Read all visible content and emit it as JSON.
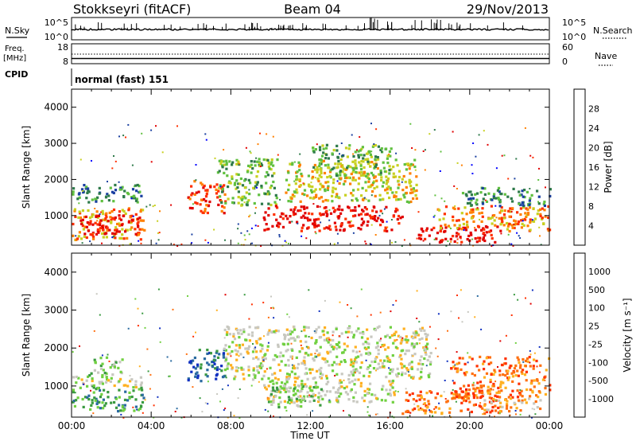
{
  "header": {
    "station": "Stokkseyri (fitACF)",
    "beam": "Beam 04",
    "date": "29/Nov/2013"
  },
  "strip_panels": {
    "nsky": {
      "label": "N.Sky",
      "ticks": [
        "10^5",
        "10^0"
      ],
      "right_ticks": [
        "10^5",
        "10^0"
      ],
      "right_label": "N.Search"
    },
    "freq": {
      "label_line1": "Freq.",
      "label_line2": "[MHz]",
      "ticks": [
        "18",
        "8"
      ],
      "right_ticks": [
        "60",
        "0"
      ],
      "right_label": "Nave"
    },
    "cpid": {
      "label": "CPID",
      "value": "normal (fast) 151"
    }
  },
  "chart_data": [
    {
      "type": "heatmap",
      "name": "power",
      "ylabel": "Slant Range [km]",
      "yticks": [
        "4000",
        "3000",
        "2000",
        "1000"
      ],
      "yticks_values": [
        4000,
        3000,
        2000,
        1000
      ],
      "ylim": [
        180,
        4500
      ],
      "xlim": [
        0,
        24
      ],
      "colorbar": {
        "label": "Power [dB]",
        "ticks": [
          "28",
          "24",
          "20",
          "16",
          "12",
          "8",
          "4"
        ],
        "colors": [
          "#0000ff",
          "#1a3fa0",
          "#2e7a4a",
          "#60c040",
          "#c8d020",
          "#ff8000",
          "#ff3000",
          "#e00000"
        ]
      },
      "regions": [
        {
          "t0": 0.0,
          "t1": 3.7,
          "r0": 350,
          "r1": 1250,
          "level": 5
        },
        {
          "t0": 0.4,
          "t1": 3.4,
          "r0": 500,
          "r1": 1050,
          "level": 7
        },
        {
          "t0": 0.0,
          "t1": 3.5,
          "r0": 1400,
          "r1": 1900,
          "level": 2
        },
        {
          "t0": 5.8,
          "t1": 7.7,
          "r0": 1100,
          "r1": 2000,
          "level": 6
        },
        {
          "t0": 7.3,
          "t1": 10.3,
          "r0": 1300,
          "r1": 2600,
          "level": 3
        },
        {
          "t0": 9.6,
          "t1": 16.6,
          "r0": 600,
          "r1": 1300,
          "level": 7
        },
        {
          "t0": 10.7,
          "t1": 17.3,
          "r0": 1400,
          "r1": 2600,
          "level": 4
        },
        {
          "t0": 12.0,
          "t1": 16.0,
          "r0": 2100,
          "r1": 3000,
          "level": 3
        },
        {
          "t0": 17.3,
          "t1": 21.5,
          "r0": 280,
          "r1": 750,
          "level": 7
        },
        {
          "t0": 18.3,
          "t1": 24.0,
          "r0": 600,
          "r1": 1300,
          "level": 5
        },
        {
          "t0": 19.5,
          "t1": 24.0,
          "r0": 1300,
          "r1": 1800,
          "level": 2
        }
      ]
    },
    {
      "type": "heatmap",
      "name": "velocity",
      "ylabel": "Slant Range [km]",
      "yticks": [
        "4000",
        "3000",
        "2000",
        "1000"
      ],
      "yticks_values": [
        4000,
        3000,
        2000,
        1000
      ],
      "ylim": [
        180,
        4500
      ],
      "xlim": [
        0,
        24
      ],
      "xticks": [
        "00:00",
        "04:00",
        "08:00",
        "12:00",
        "16:00",
        "20:00",
        "00:00"
      ],
      "xticks_values": [
        0,
        4,
        8,
        12,
        16,
        20,
        24
      ],
      "xlabel": "Time UT",
      "colorbar": {
        "label": "Velocity [m s⁻¹]",
        "ticks": [
          "1000",
          "500",
          "100",
          "25",
          "-25",
          "-100",
          "-500",
          "-1000"
        ],
        "colors": [
          "#1030c0",
          "#2a6aa0",
          "#3a9a40",
          "#70d040",
          "#c8c8c0",
          "#ffb020",
          "#ff7010",
          "#ff3000",
          "#e00000"
        ]
      },
      "regions": [
        {
          "t0": 0.0,
          "t1": 3.6,
          "r0": 350,
          "r1": 1000,
          "level": 2
        },
        {
          "t0": 0.0,
          "t1": 3.6,
          "r0": 1000,
          "r1": 1300,
          "level": 4
        },
        {
          "t0": 0.8,
          "t1": 2.5,
          "r0": 1300,
          "r1": 1800,
          "level": 3
        },
        {
          "t0": 5.8,
          "t1": 7.7,
          "r0": 1100,
          "r1": 2000,
          "level": 1
        },
        {
          "t0": 7.6,
          "t1": 18.0,
          "r0": 1200,
          "r1": 2600,
          "level": 4
        },
        {
          "t0": 9.6,
          "t1": 16.3,
          "r0": 600,
          "r1": 1200,
          "level": 4
        },
        {
          "t0": 9.8,
          "t1": 12.5,
          "r0": 450,
          "r1": 1100,
          "level": 3
        },
        {
          "t0": 16.5,
          "t1": 21.5,
          "r0": 300,
          "r1": 900,
          "level": 6
        },
        {
          "t0": 19.0,
          "t1": 24.0,
          "r0": 700,
          "r1": 1800,
          "level": 6
        },
        {
          "t0": 20.6,
          "t1": 23.5,
          "r0": 350,
          "r1": 700,
          "level": 5
        }
      ]
    }
  ]
}
